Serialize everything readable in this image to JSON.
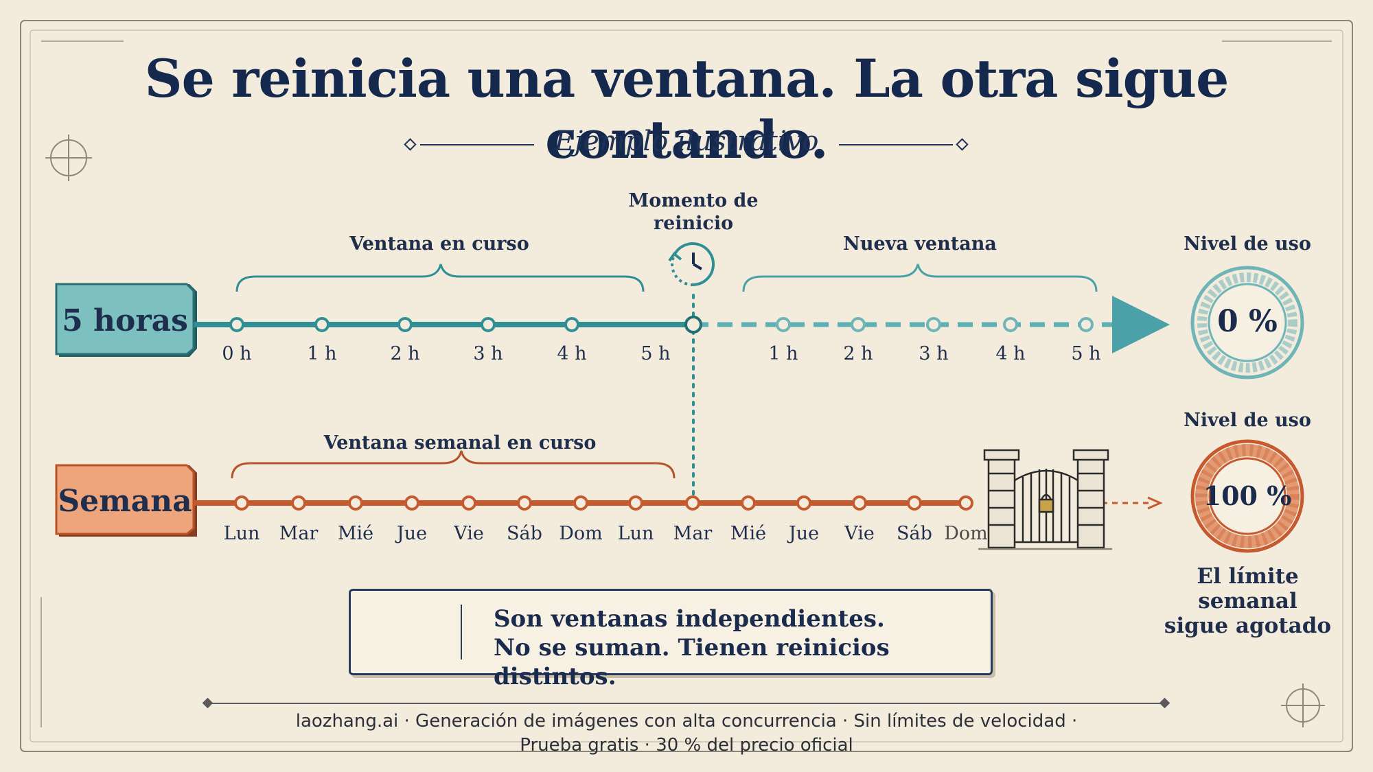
{
  "title": "Se reinicia una ventana. La otra sigue contando.",
  "subtitle": "Ejemplo ilustrativo",
  "reset_label": "Momento de reinicio",
  "five_hours": {
    "tag": "5 horas",
    "current_window_label": "Ventana en curso",
    "new_window_label": "Nueva ventana",
    "current_ticks": [
      "0 h",
      "1 h",
      "2 h",
      "3 h",
      "4 h",
      "5 h"
    ],
    "new_ticks": [
      "1 h",
      "2 h",
      "3 h",
      "4 h",
      "5 h"
    ],
    "usage_label": "Nivel de uso",
    "usage_value": "0 %",
    "usage_fraction": 0,
    "color": "#2f8f95"
  },
  "week": {
    "tag": "Semana",
    "current_window_label": "Ventana semanal en curso",
    "ticks": [
      "Lun",
      "Mar",
      "Mié",
      "Jue",
      "Vie",
      "Sáb",
      "Dom",
      "Lun",
      "Mar",
      "Mié",
      "Jue",
      "Vie",
      "Sáb",
      "Dom"
    ],
    "usage_label": "Nivel de uso",
    "usage_value": "100 %",
    "usage_fraction": 1,
    "limit_note": [
      "El límite",
      "semanal",
      "sigue agotado"
    ],
    "color": "#c65a2e"
  },
  "callout": {
    "line1": "Son ventanas independientes.",
    "line2": "No se suman. Tienen reinicios distintos."
  },
  "footer": {
    "line1": "laozhang.ai · Generación de imágenes con alta concurrencia · Sin límites de velocidad ·",
    "line2": "Prueba gratis · 30 % del precio oficial"
  },
  "colors": {
    "navy": "#1b2d4f",
    "teal": "#2f8f95",
    "rust": "#c65a2e",
    "paper": "#f3ecdd"
  },
  "icons": [
    "clock-reset-icon",
    "gate-lock-icon",
    "lightbulb-icon",
    "crosshair-ornament-icon"
  ]
}
